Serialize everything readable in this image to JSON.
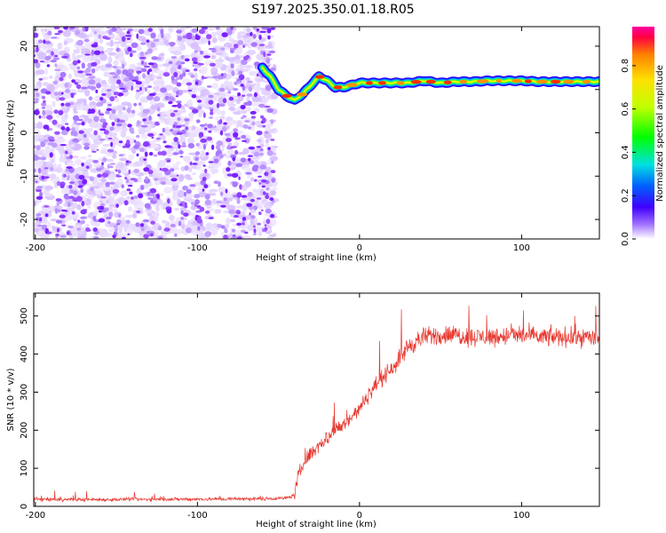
{
  "title": "S197.2025.350.01.18.R05",
  "chart_data": [
    {
      "type": "heatmap",
      "xlabel": "Height of straight line (km)",
      "ylabel": "Frequency (Hz)",
      "xlim": [
        -201,
        148
      ],
      "ylim": [
        -24.5,
        24.5
      ],
      "xticks": [
        -200,
        -100,
        0,
        100
      ],
      "yticks": [
        -20,
        -10,
        0,
        10,
        20
      ],
      "noise_region_x": [
        -201,
        -52
      ],
      "ridge": {
        "x": [
          -60,
          -55,
          -50,
          -45,
          -40,
          -35,
          -30,
          -25,
          -20,
          -15,
          -10,
          -5,
          0,
          10,
          20,
          30,
          40,
          50,
          60,
          70,
          80,
          90,
          100,
          110,
          120,
          130,
          140,
          148
        ],
        "frequency": [
          15,
          13,
          10,
          8.5,
          7.5,
          9,
          11,
          13,
          12,
          10.5,
          10.5,
          11,
          11.5,
          11.5,
          11.5,
          11.5,
          12,
          11.5,
          11.8,
          11.8,
          12,
          12,
          12,
          11.8,
          11.8,
          11.8,
          11.8,
          11.8
        ]
      },
      "colorbar": {
        "label": "Normalized spectral amplitude",
        "ticks": [
          "0.0",
          "0.2",
          "0.4",
          "0.6",
          "0.8"
        ],
        "range": [
          0,
          0.98
        ]
      }
    },
    {
      "type": "line",
      "xlabel": "Height of straight line (km)",
      "ylabel": "SNR (10 * v/v)",
      "xlim": [
        -201,
        148
      ],
      "ylim": [
        0,
        560
      ],
      "xticks": [
        -200,
        -100,
        0,
        100
      ],
      "yticks": [
        0,
        100,
        200,
        300,
        400,
        500
      ],
      "series": [
        {
          "color": "#e8372e",
          "x": [
            -201,
            -150,
            -100,
            -60,
            -45,
            -40,
            -38,
            -35,
            -30,
            -25,
            -20,
            -15,
            -10,
            -5,
            0,
            5,
            10,
            15,
            20,
            25,
            30,
            40,
            50,
            60,
            70,
            80,
            90,
            100,
            110,
            120,
            130,
            140,
            148
          ],
          "y": [
            18,
            18,
            19,
            20,
            22,
            30,
            75,
            110,
            140,
            160,
            180,
            200,
            215,
            235,
            255,
            290,
            320,
            340,
            365,
            390,
            420,
            445,
            450,
            450,
            445,
            445,
            448,
            450,
            445,
            445,
            445,
            445,
            440
          ]
        }
      ]
    }
  ]
}
